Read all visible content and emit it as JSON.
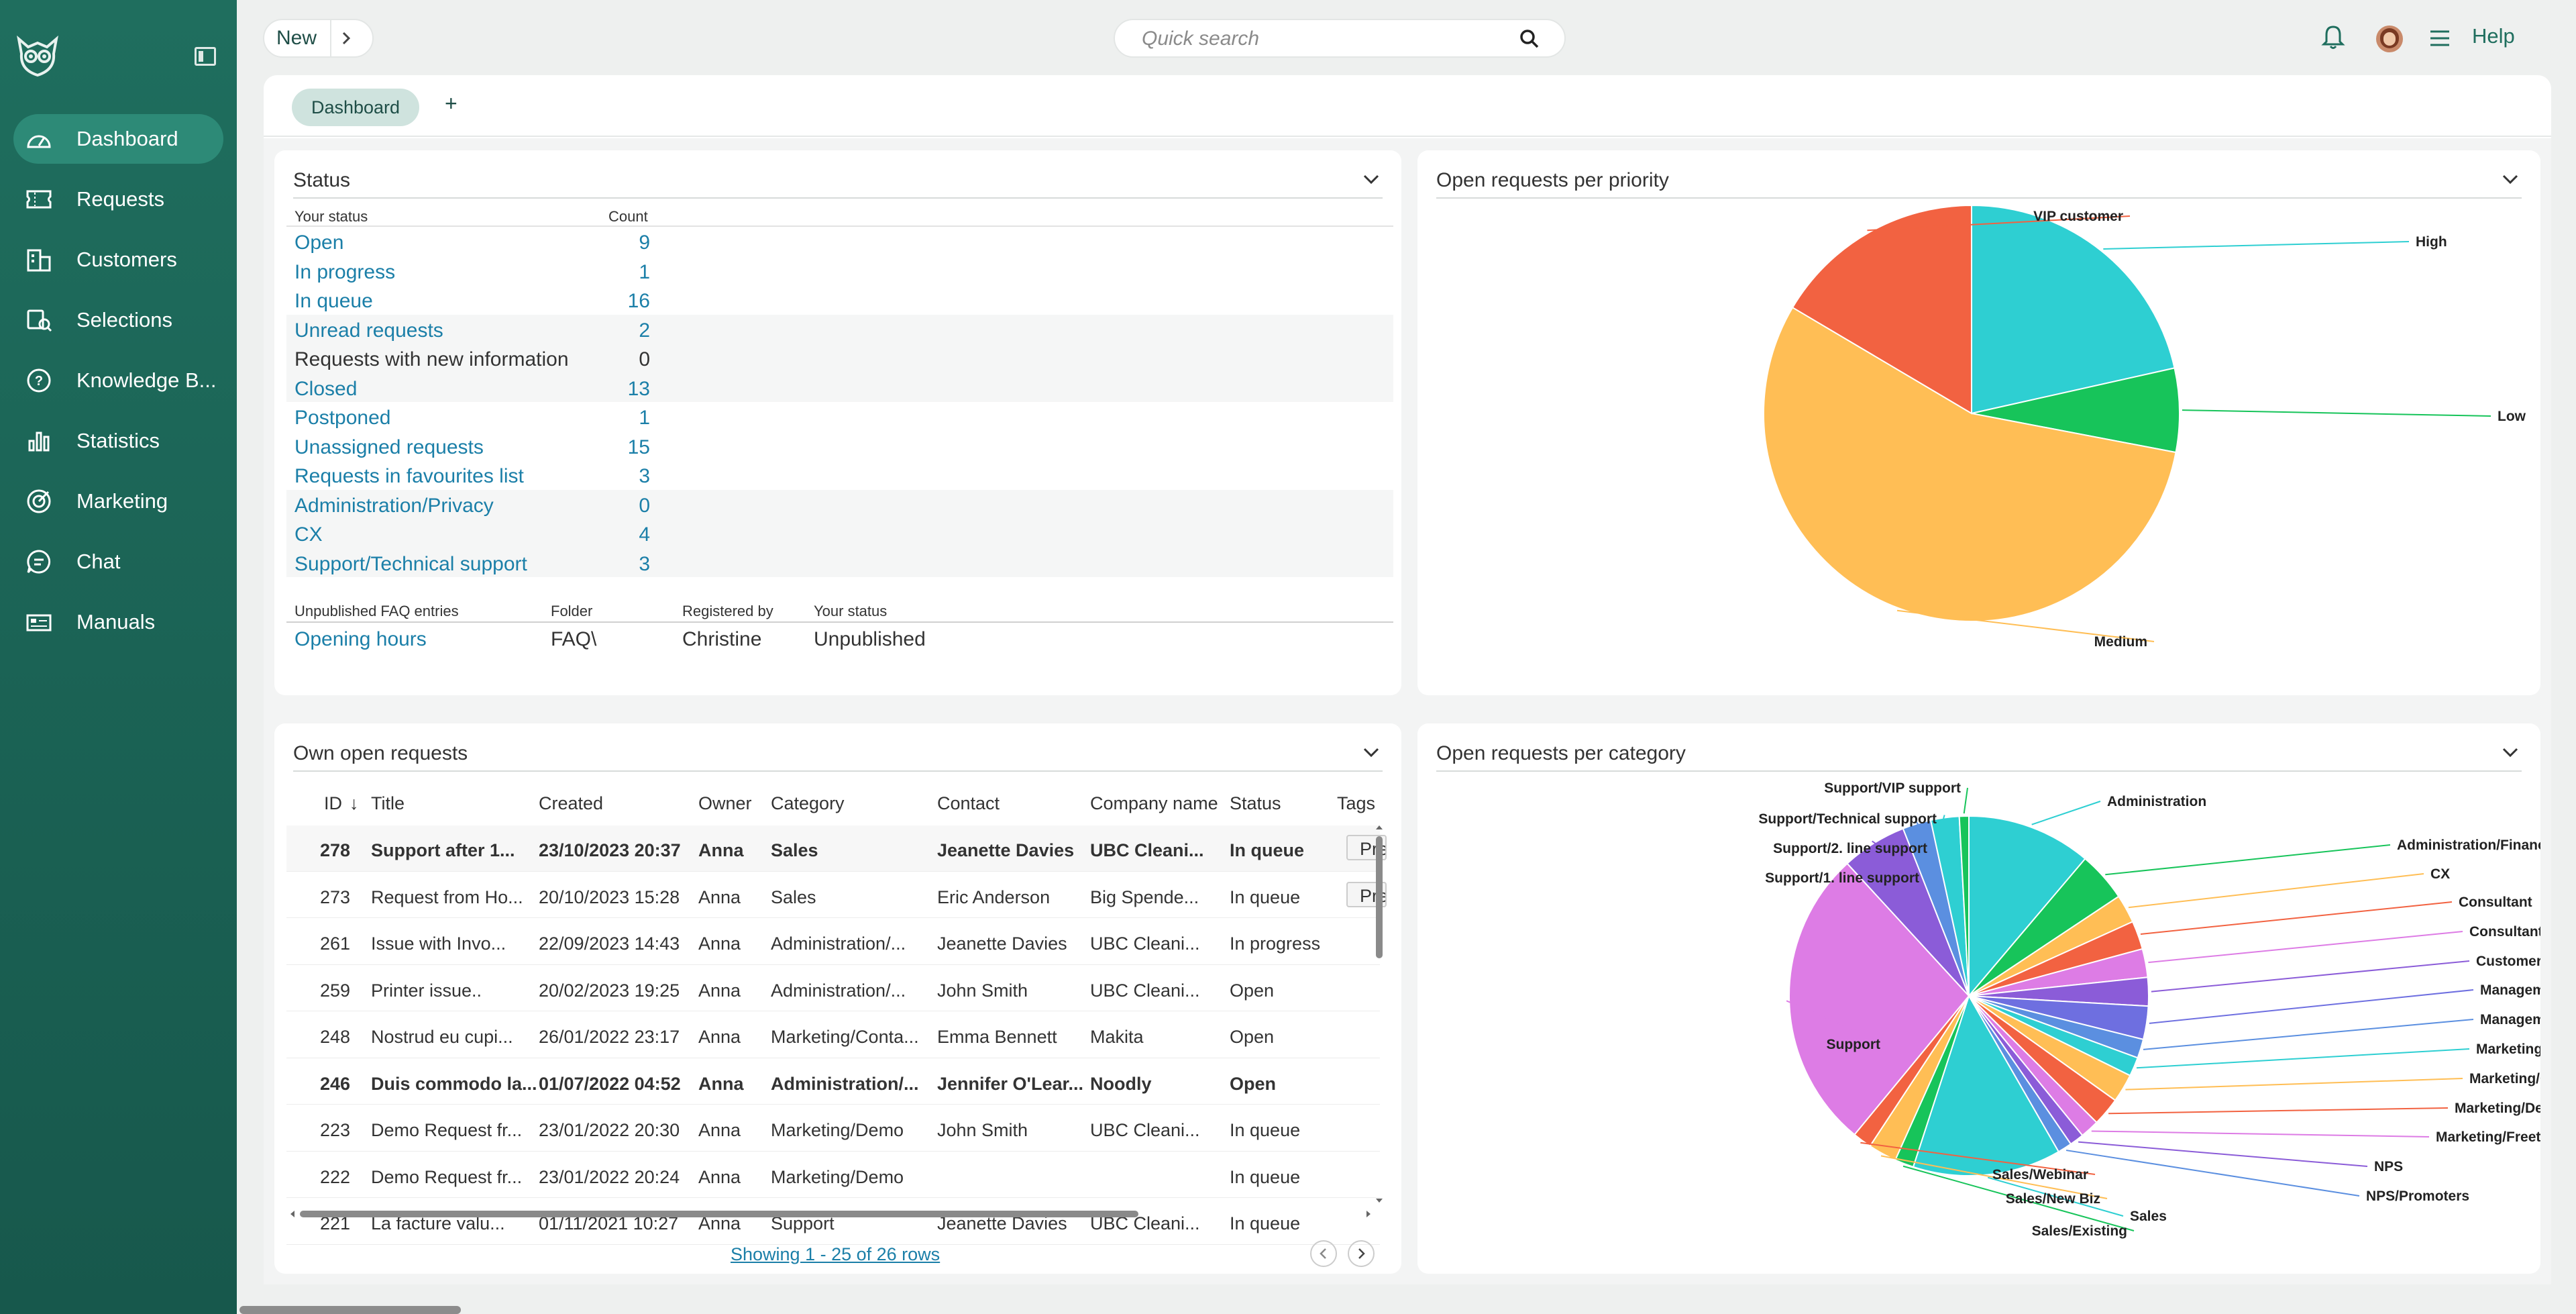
{
  "sidebar": {
    "items": [
      {
        "label": "Dashboard",
        "icon": "dashboard-icon"
      },
      {
        "label": "Requests",
        "icon": "ticket-icon"
      },
      {
        "label": "Customers",
        "icon": "building-icon"
      },
      {
        "label": "Selections",
        "icon": "selection-icon"
      },
      {
        "label": "Knowledge B...",
        "icon": "question-icon"
      },
      {
        "label": "Statistics",
        "icon": "bar-chart-icon"
      },
      {
        "label": "Marketing",
        "icon": "target-icon"
      },
      {
        "label": "Chat",
        "icon": "chat-icon"
      },
      {
        "label": "Manuals",
        "icon": "manual-icon"
      }
    ]
  },
  "topbar": {
    "new_label": "New",
    "search_placeholder": "Quick search",
    "help_label": "Help"
  },
  "tabs": {
    "active": "Dashboard",
    "add": "+"
  },
  "status_panel": {
    "title": "Status",
    "col_status": "Your status",
    "col_count": "Count",
    "rows": [
      {
        "label": "Open",
        "count": "9"
      },
      {
        "label": "In progress",
        "count": "1"
      },
      {
        "label": "In queue",
        "count": "16"
      },
      {
        "label": "Unread requests",
        "count": "2"
      },
      {
        "label": "Requests with new information",
        "count": "0"
      },
      {
        "label": "Closed",
        "count": "13"
      },
      {
        "label": "Postponed",
        "count": "1"
      },
      {
        "label": "Unassigned requests",
        "count": "15"
      },
      {
        "label": "Requests in favourites list",
        "count": "3"
      },
      {
        "label": "Administration/Privacy",
        "count": "0"
      },
      {
        "label": "CX",
        "count": "4"
      },
      {
        "label": "Support/Technical support",
        "count": "3"
      }
    ],
    "faq": {
      "col_entries": "Unpublished FAQ entries",
      "col_folder": "Folder",
      "col_registered": "Registered by",
      "col_status": "Your status",
      "entry": "Opening hours",
      "folder": "FAQ\\",
      "registered": "Christine",
      "status": "Unpublished"
    }
  },
  "requests_panel": {
    "title": "Own open requests",
    "columns": [
      "ID",
      "Title",
      "Created",
      "Owner",
      "Category",
      "Contact",
      "Company name",
      "Status",
      "Tags"
    ],
    "sort_arrow": "↓",
    "rows": [
      {
        "id": "278",
        "title": "Support after 1...",
        "created": "23/10/2023 20:37",
        "owner": "Anna",
        "category": "Sales",
        "contact": "Jeanette Davies",
        "company": "UBC Cleani...",
        "status": "In queue",
        "tag": "Pre"
      },
      {
        "id": "273",
        "title": "Request from Ho...",
        "created": "20/10/2023 15:28",
        "owner": "Anna",
        "category": "Sales",
        "contact": "Eric Anderson",
        "company": "Big Spende...",
        "status": "In queue",
        "tag": "Pre"
      },
      {
        "id": "261",
        "title": "Issue with Invo...",
        "created": "22/09/2023 14:43",
        "owner": "Anna",
        "category": "Administration/...",
        "contact": "Jeanette Davies",
        "company": "UBC Cleani...",
        "status": "In progress",
        "tag": ""
      },
      {
        "id": "259",
        "title": "Printer issue..",
        "created": "20/02/2023 19:25",
        "owner": "Anna",
        "category": "Administration/...",
        "contact": "John Smith",
        "company": "UBC Cleani...",
        "status": "Open",
        "tag": ""
      },
      {
        "id": "248",
        "title": "Nostrud eu cupi...",
        "created": "26/01/2022 23:17",
        "owner": "Anna",
        "category": "Marketing/Conta...",
        "contact": "Emma Bennett",
        "company": "Makita",
        "status": "Open",
        "tag": ""
      },
      {
        "id": "246",
        "title": "Duis commodo la...",
        "created": "01/07/2022 04:52",
        "owner": "Anna",
        "category": "Administration/...",
        "contact": "Jennifer O'Lear...",
        "company": "Noodly",
        "status": "Open",
        "tag": ""
      },
      {
        "id": "223",
        "title": "Demo Request fr...",
        "created": "23/01/2022 20:30",
        "owner": "Anna",
        "category": "Marketing/Demo",
        "contact": "John Smith",
        "company": "UBC Cleani...",
        "status": "In queue",
        "tag": ""
      },
      {
        "id": "222",
        "title": "Demo Request fr...",
        "created": "23/01/2022 20:24",
        "owner": "Anna",
        "category": "Marketing/Demo",
        "contact": "",
        "company": "",
        "status": "In queue",
        "tag": ""
      },
      {
        "id": "221",
        "title": "La facture valu...",
        "created": "01/11/2021 10:27",
        "owner": "Anna",
        "category": "Support",
        "contact": "Jeanette Davies",
        "company": "UBC Cleani...",
        "status": "In queue",
        "tag": ""
      }
    ],
    "bold_rows": [
      0,
      5
    ],
    "pager_text": "Showing 1 - 25 of 26 rows"
  },
  "priority_panel": {
    "title": "Open requests per priority"
  },
  "category_panel": {
    "title": "Open requests per category"
  },
  "chart_data": [
    {
      "type": "pie",
      "title": "Open requests per priority",
      "categories": [
        "High",
        "Low",
        "Medium",
        "VIP customer"
      ],
      "values": [
        21.5,
        6.5,
        55.5,
        16.5
      ],
      "colors": [
        "#2ecfd2",
        "#17c45a",
        "#ffbe55",
        "#f26241"
      ]
    },
    {
      "type": "pie",
      "title": "Open requests per category",
      "categories": [
        "Administration",
        "Administration/Finance",
        "CX",
        "Consultant",
        "Consultant/Estimate",
        "Customer Service",
        "Management",
        "Management/Assessment board",
        "Marketing",
        "Marketing/Contact me",
        "Marketing/Demo",
        "Marketing/Freetrial Signup",
        "NPS",
        "NPS/Promoters",
        "Sales",
        "Sales/Existing",
        "Sales/New Biz",
        "Sales/Webinar",
        "Support",
        "Support/1. line support",
        "Support/2. line support",
        "Support/Technical support",
        "Support/VIP support"
      ],
      "values": [
        10.5,
        4.2,
        2.4,
        2.4,
        2.4,
        2.4,
        2.8,
        1.6,
        1.6,
        2.4,
        2.4,
        1.6,
        1.2,
        1.2,
        12.5,
        1.6,
        2.4,
        1.6,
        25.5,
        5.5,
        2.4,
        2.4,
        0.8
      ],
      "colors": [
        "#2ecfd2",
        "#17c45a",
        "#ffbe55",
        "#f26241",
        "#dd7ce5",
        "#8b5cd8",
        "#6e6fe0",
        "#5b8fe0",
        "#2ecfd2",
        "#ffbe55",
        "#f26241",
        "#dd7ce5",
        "#8b5cd8",
        "#5b8fe0",
        "#2ecfd2",
        "#17c45a",
        "#ffbe55",
        "#f26241",
        "#dd7ce5",
        "#8b5cd8",
        "#5b8fe0",
        "#2ecfd2",
        "#17c45a"
      ]
    }
  ]
}
